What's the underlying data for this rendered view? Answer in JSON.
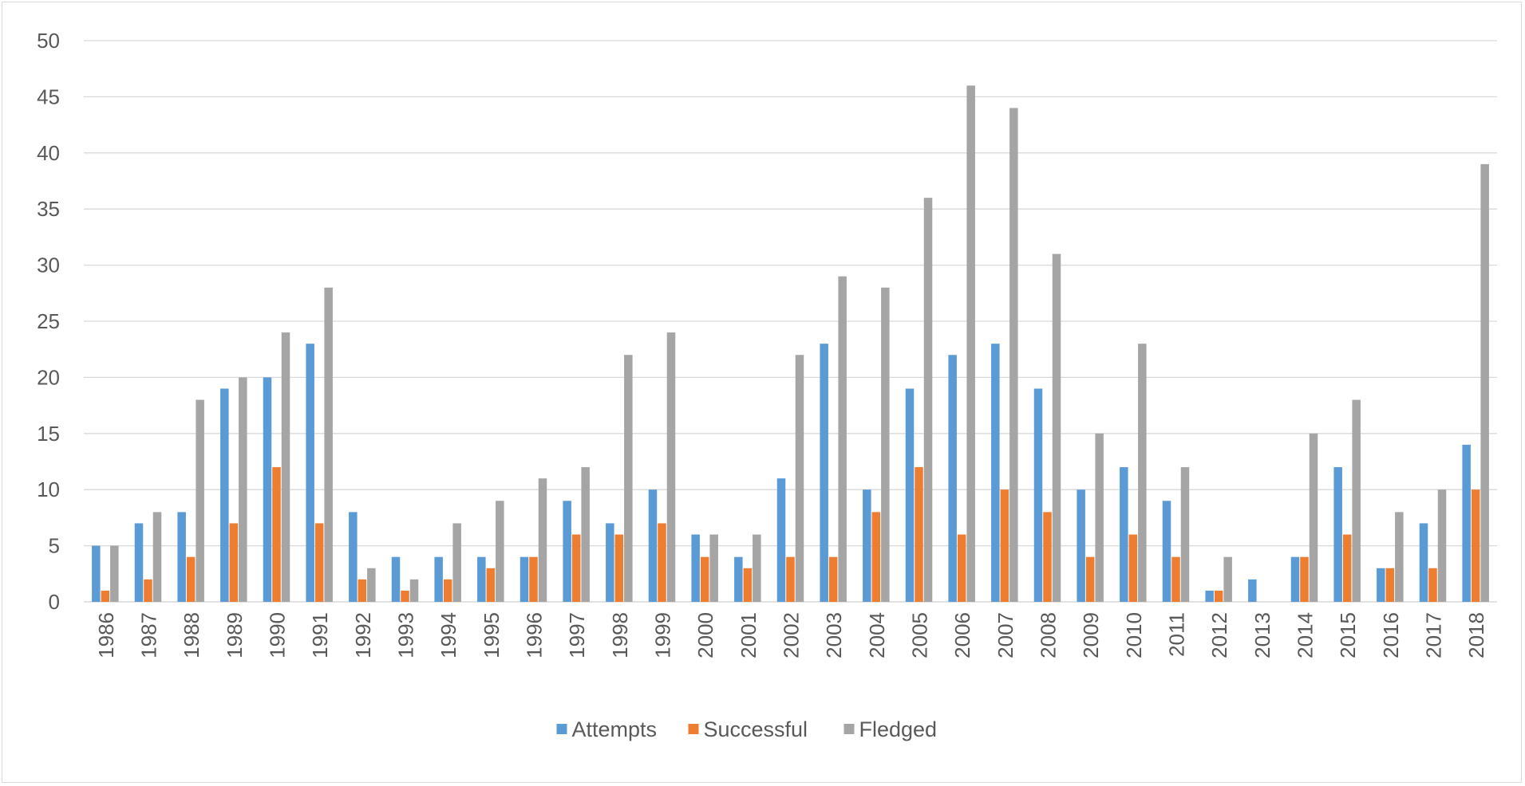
{
  "chart_data": {
    "type": "bar",
    "title": "",
    "xlabel": "",
    "ylabel": "",
    "ylim": [
      0,
      50
    ],
    "yticks": [
      0,
      5,
      10,
      15,
      20,
      25,
      30,
      35,
      40,
      45,
      50
    ],
    "grid": true,
    "legend_position": "bottom",
    "categories": [
      "1986",
      "1987",
      "1988",
      "1989",
      "1990",
      "1991",
      "1992",
      "1993",
      "1994",
      "1995",
      "1996",
      "1997",
      "1998",
      "1999",
      "2000",
      "2001",
      "2002",
      "2003",
      "2004",
      "2005",
      "2006",
      "2007",
      "2008",
      "2009",
      "2010",
      "2011",
      "2012",
      "2013",
      "2014",
      "2015",
      "2016",
      "2017",
      "2018"
    ],
    "series": [
      {
        "name": "Attempts",
        "color": "#5b9bd5",
        "values": [
          5,
          7,
          8,
          19,
          20,
          23,
          8,
          4,
          4,
          4,
          4,
          9,
          7,
          10,
          6,
          4,
          11,
          23,
          10,
          19,
          22,
          23,
          19,
          10,
          12,
          9,
          1,
          2,
          4,
          12,
          3,
          7,
          14
        ]
      },
      {
        "name": "Successful",
        "color": "#ed7d31",
        "values": [
          1,
          2,
          4,
          7,
          12,
          7,
          2,
          1,
          2,
          3,
          4,
          6,
          6,
          7,
          4,
          3,
          4,
          4,
          8,
          12,
          6,
          10,
          8,
          4,
          6,
          4,
          1,
          0,
          4,
          6,
          3,
          3,
          10
        ]
      },
      {
        "name": "Fledged",
        "color": "#a5a5a5",
        "values": [
          5,
          8,
          18,
          20,
          24,
          28,
          3,
          2,
          7,
          9,
          11,
          12,
          22,
          24,
          6,
          6,
          22,
          29,
          28,
          36,
          46,
          44,
          31,
          15,
          23,
          12,
          4,
          0,
          15,
          18,
          8,
          10,
          39
        ]
      }
    ]
  }
}
